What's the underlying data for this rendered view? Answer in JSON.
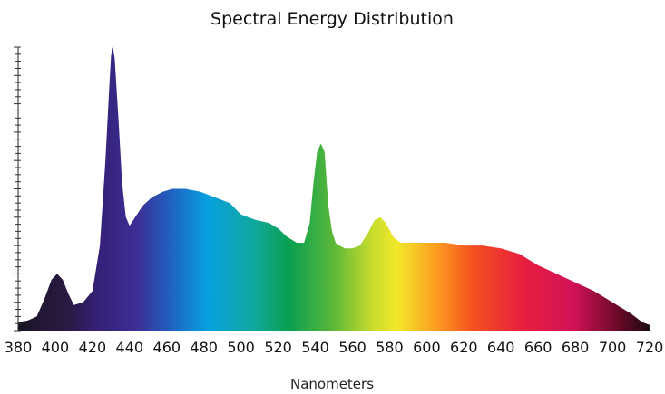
{
  "chart_data": {
    "type": "area",
    "title": "Spectral Energy Distribution",
    "xlabel": "Nanometers",
    "ylabel": "",
    "xlim": [
      380,
      720
    ],
    "ylim": [
      0,
      100
    ],
    "x_ticks": [
      "380",
      "400",
      "420",
      "440",
      "460",
      "480",
      "500",
      "520",
      "540",
      "560",
      "580",
      "600",
      "620",
      "640",
      "660",
      "680",
      "700",
      "720"
    ],
    "grid": false,
    "fill": "visible-spectrum-gradient",
    "series": [
      {
        "x": [
          380,
          385,
          390,
          394,
          398,
          401,
          404,
          407,
          410,
          415,
          420,
          424,
          427,
          429,
          430,
          431,
          432,
          434,
          436,
          438,
          440,
          443,
          447,
          452,
          458,
          463,
          470,
          478,
          486,
          494,
          500,
          508,
          515,
          520,
          525,
          530,
          534,
          537,
          539,
          541,
          543,
          545,
          547,
          549,
          551,
          553,
          556,
          560,
          564,
          568,
          572,
          575,
          578,
          582,
          586,
          590,
          600,
          610,
          620,
          630,
          640,
          650,
          660,
          670,
          680,
          690,
          700,
          710,
          716,
          720
        ],
        "values": [
          3,
          3.5,
          5,
          11,
          18,
          20,
          18,
          13,
          9,
          10,
          14,
          30,
          60,
          85,
          97,
          100,
          96,
          75,
          52,
          40,
          37,
          40,
          44,
          47,
          49,
          50,
          50,
          49,
          47,
          45,
          41,
          39,
          38,
          36,
          33,
          31,
          31,
          38,
          52,
          63,
          66,
          63,
          44,
          35,
          31,
          30,
          29,
          29,
          30,
          34,
          39,
          40,
          38,
          33,
          31,
          31,
          31,
          31,
          30,
          30,
          29,
          27,
          23,
          20,
          17,
          14,
          10,
          6,
          3,
          2
        ]
      }
    ]
  }
}
